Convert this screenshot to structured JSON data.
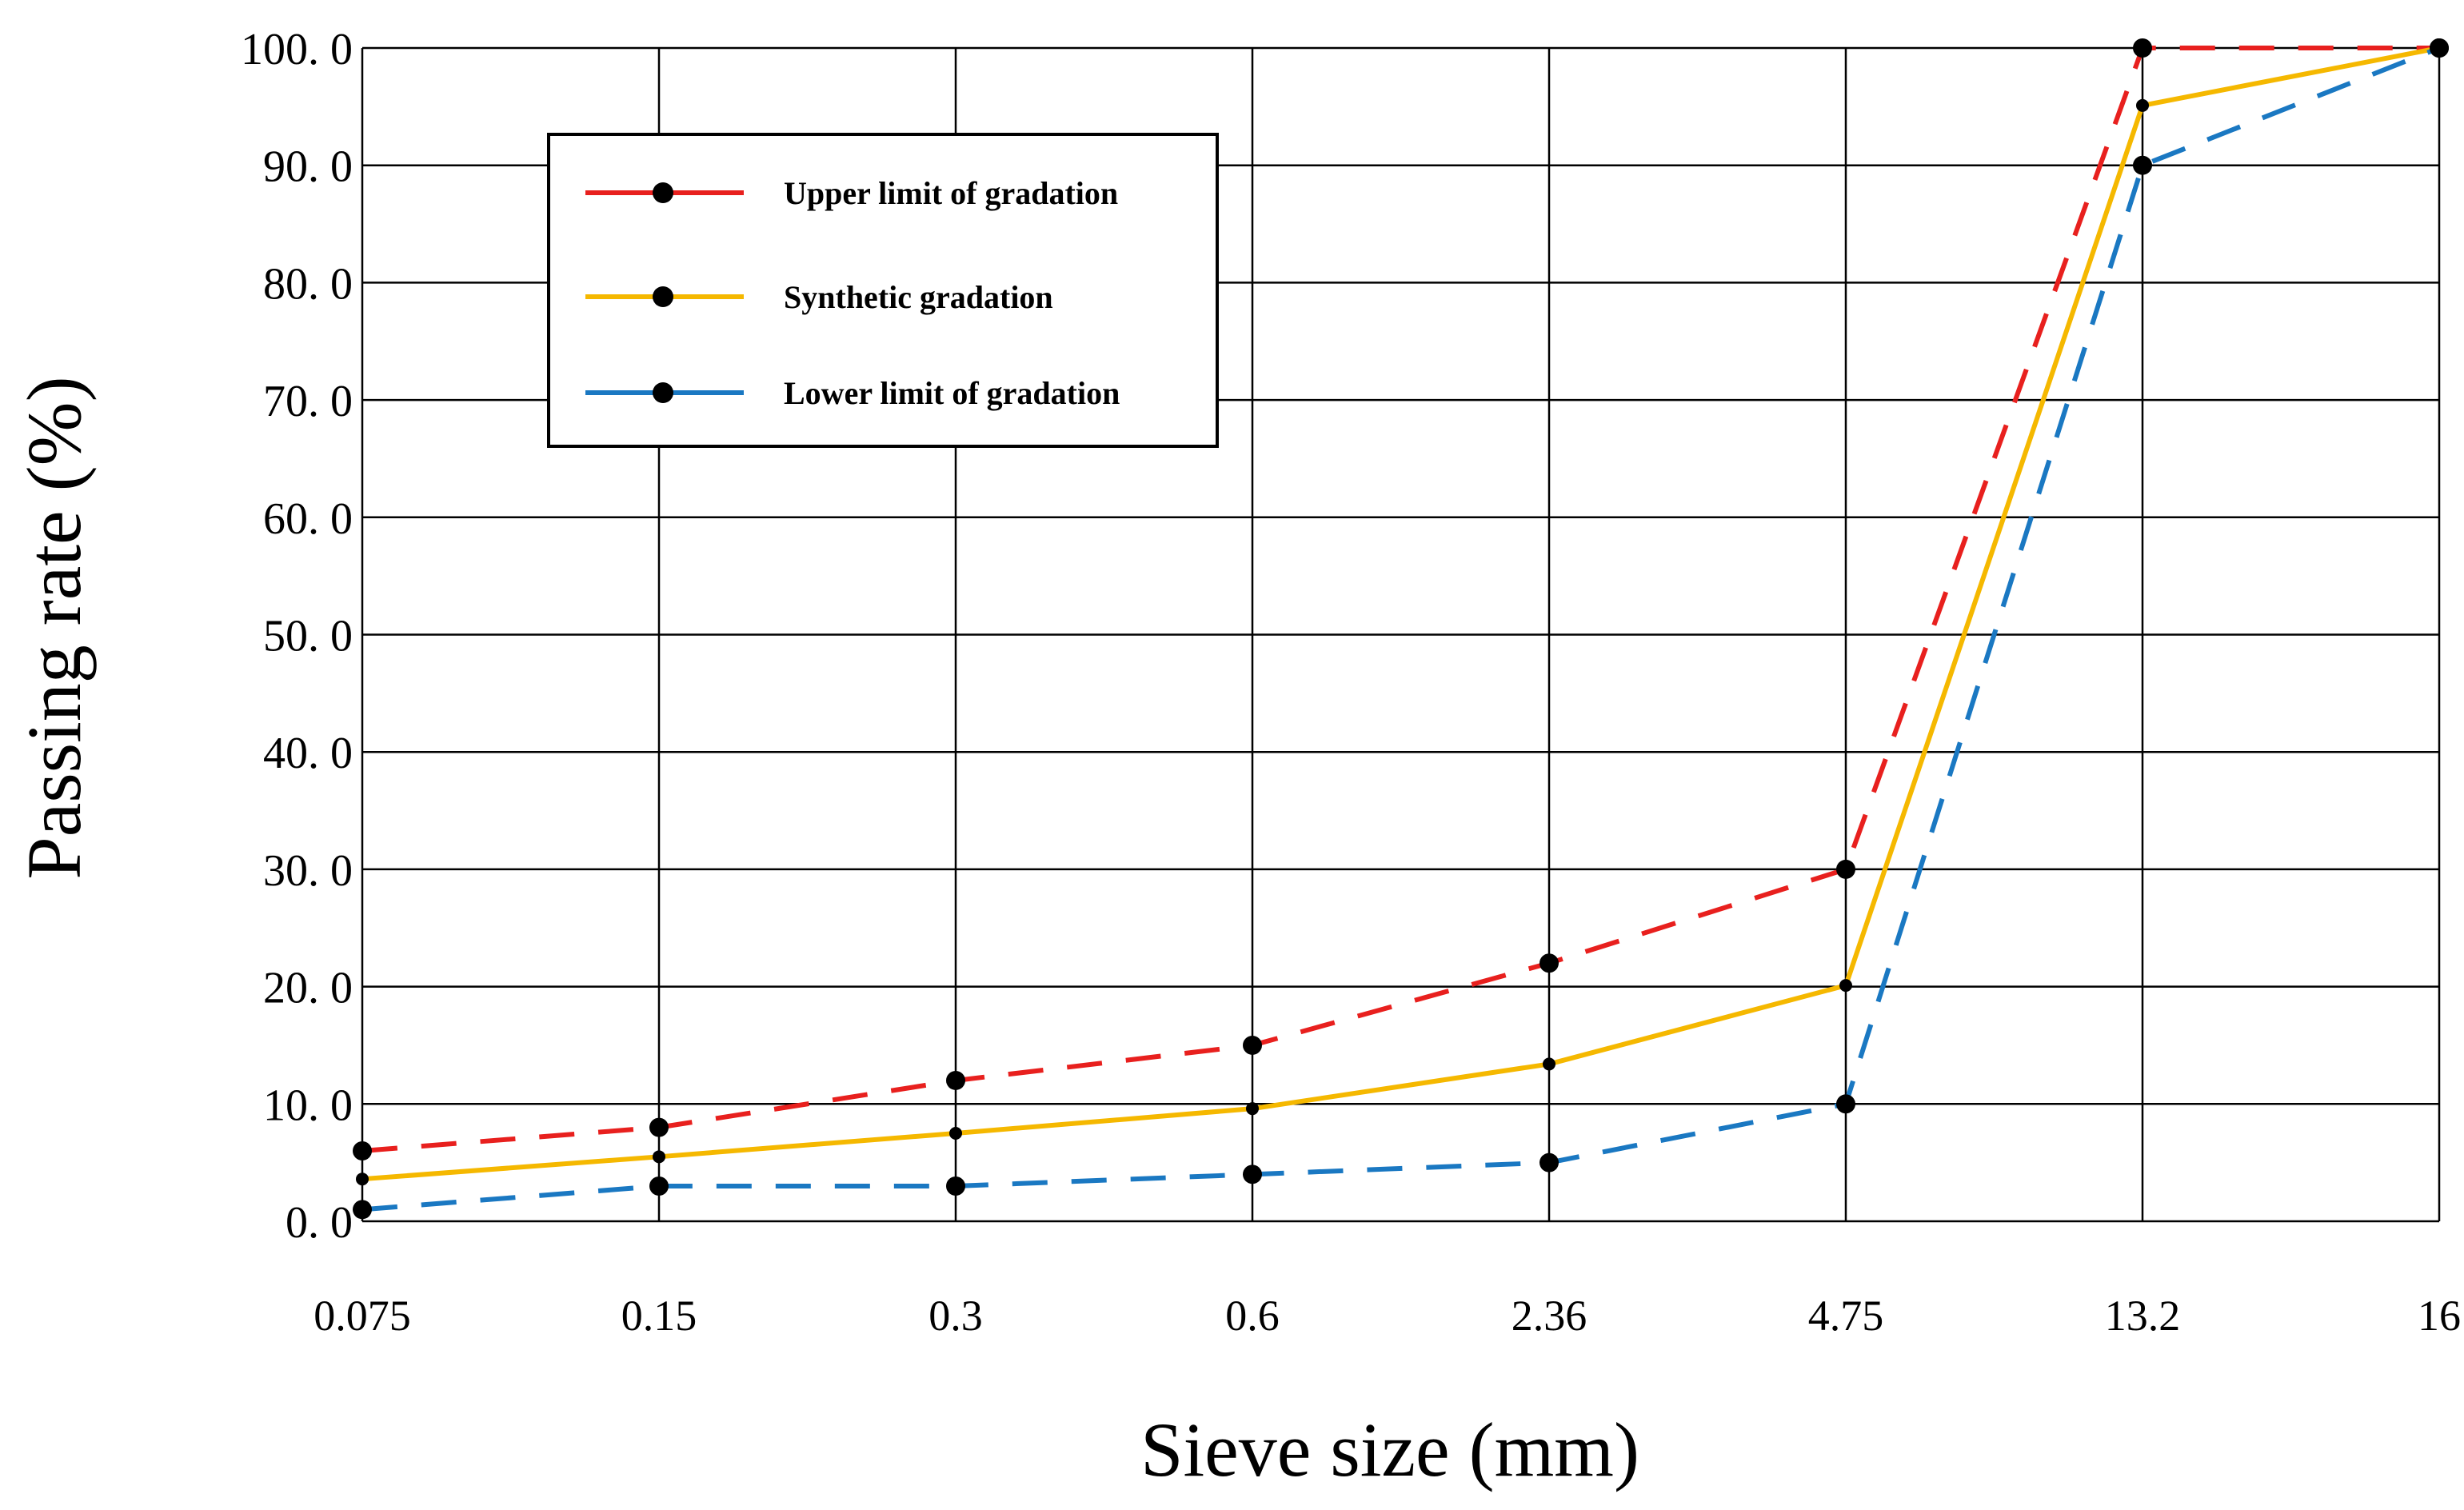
{
  "chart_data": {
    "type": "line",
    "title": "",
    "xlabel": "Sieve size (mm)",
    "ylabel": "Passing rate (%)",
    "categories": [
      "0.075",
      "0.15",
      "0.3",
      "0.6",
      "2.36",
      "4.75",
      "13.2",
      "16"
    ],
    "y_tick_labels": [
      "0. 0",
      "10. 0",
      "20. 0",
      "30. 0",
      "40. 0",
      "50. 0",
      "60. 0",
      "70. 0",
      "80. 0",
      "90. 0",
      "100. 0"
    ],
    "ylim": [
      0,
      100
    ],
    "grid": true,
    "legend_position": "top-left",
    "series": [
      {
        "name": "Upper limit of gradation",
        "color": "#e8201e",
        "dashed": true,
        "marker_size": "large",
        "values": [
          6,
          8,
          12,
          15,
          22,
          30,
          100,
          100
        ]
      },
      {
        "name": "Synthetic gradation",
        "color": "#f5b800",
        "dashed": false,
        "marker_size": "small",
        "values": [
          3.6,
          5.5,
          7.5,
          9.6,
          13.4,
          20.1,
          95.1,
          100
        ]
      },
      {
        "name": "Lower limit of gradation",
        "color": "#1a78c2",
        "dashed": true,
        "marker_size": "large",
        "values": [
          1,
          3,
          3,
          4,
          5,
          10,
          90,
          100
        ]
      }
    ]
  }
}
